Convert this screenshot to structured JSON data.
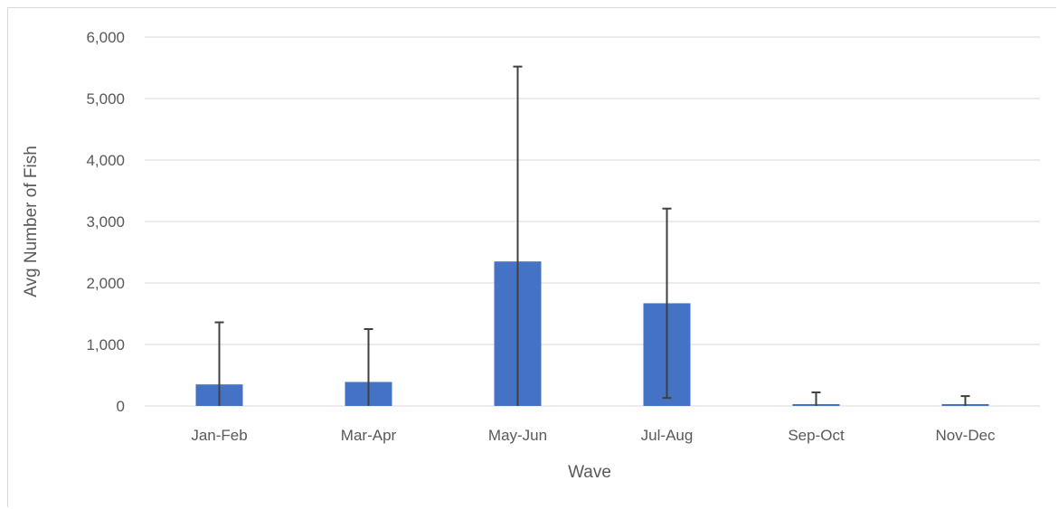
{
  "chart_data": {
    "type": "bar",
    "title": "",
    "xlabel": "Wave",
    "ylabel": "Avg Number of Fish",
    "categories": [
      "Jan-Feb",
      "Mar-Apr",
      "May-Jun",
      "Jul-Aug",
      "Sep-Oct",
      "Nov-Dec"
    ],
    "values": [
      350,
      390,
      2350,
      1670,
      30,
      30
    ],
    "error_plus": [
      1010,
      860,
      3170,
      1540,
      190,
      130
    ],
    "error_minus": [
      350,
      390,
      2350,
      1540,
      30,
      30
    ],
    "ylim": [
      0,
      6000
    ],
    "yticks": [
      "0",
      "1,000",
      "2,000",
      "3,000",
      "4,000",
      "5,000",
      "6,000"
    ],
    "ytick_values": [
      0,
      1000,
      2000,
      3000,
      4000,
      5000,
      6000
    ],
    "grid": true,
    "legend": "none",
    "bar_color": "#4472c4",
    "error_bar_color": "#404040",
    "grid_color": "#d9d9d9",
    "text_color": "#595959"
  }
}
